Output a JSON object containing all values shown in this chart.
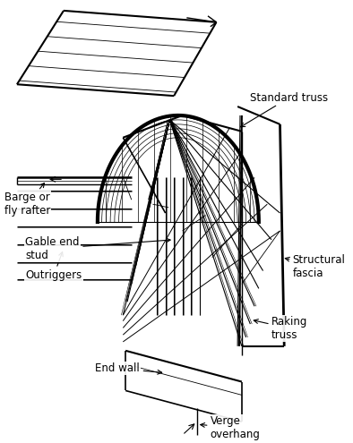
{
  "background_color": "#ffffff",
  "line_color": "#000000",
  "text_fontsize": 8.5,
  "labels": {
    "standard_truss": "Standard truss",
    "structural_fascia": "Structural\nfascia",
    "raking_truss": "Raking\ntruss",
    "verge_overhang": "Verge\noverhang",
    "end_wall": "End wall",
    "outriggers": "Outriggers",
    "gable_end_stud": "Gable end\nstud",
    "barge_fly_rafter": "Barge or\nfly rafter"
  }
}
